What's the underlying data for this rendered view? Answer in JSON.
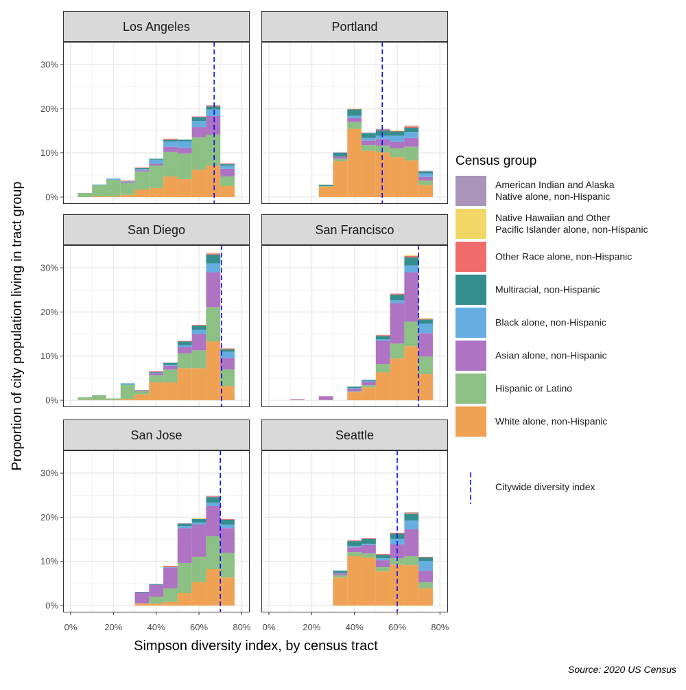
{
  "chart_data": {
    "type": "bar",
    "subtype": "stacked-histogram-facets",
    "xlabel": "Simpson diversity index, by census tract",
    "ylabel": "Proportion of city population living in tract group",
    "caption": "Source: 2020 US Census",
    "x_ticks": [
      "0%",
      "20%",
      "40%",
      "60%",
      "80%"
    ],
    "x_tick_values": [
      0,
      20,
      40,
      60,
      80
    ],
    "y_ticks": [
      "0%",
      "10%",
      "20%",
      "30%"
    ],
    "y_tick_values": [
      0,
      10,
      20,
      30
    ],
    "xlim": [
      -3.5,
      83.8
    ],
    "ylim": [
      -1.55,
      35.1
    ],
    "grid": true,
    "bin_centers": [
      6.67,
      13.33,
      20,
      26.67,
      33.33,
      40,
      46.67,
      53.33,
      60,
      66.67,
      73.33
    ],
    "bin_width": 6.67,
    "legend": {
      "title": "Census group",
      "placement": "right",
      "line_label": "Citywide diversity index",
      "line_color": "#0000FF"
    },
    "groups": [
      {
        "name": "American Indian and Alaska Native alone, non-Hispanic",
        "lines": [
          "American Indian and Alaska",
          "Native alone, non-Hispanic"
        ],
        "color": "#A895B9"
      },
      {
        "name": "Native Hawaiian and Other Pacific Islander alone, non-Hispanic",
        "lines": [
          "Native Hawaiian and Other",
          "Pacific Islander alone, non-Hispanic"
        ],
        "color": "#F2D766"
      },
      {
        "name": "Other Race alone, non-Hispanic",
        "lines": [
          "Other Race alone, non-Hispanic"
        ],
        "color": "#F06B6B"
      },
      {
        "name": "Multiracial, non-Hispanic",
        "lines": [
          "Multiracial, non-Hispanic"
        ],
        "color": "#348E8E"
      },
      {
        "name": "Black alone, non-Hispanic",
        "lines": [
          "Black alone, non-Hispanic"
        ],
        "color": "#66AEE0"
      },
      {
        "name": "Asian alone, non-Hispanic",
        "lines": [
          "Asian alone, non-Hispanic"
        ],
        "color": "#AE73C3"
      },
      {
        "name": "Hispanic or Latino",
        "lines": [
          "Hispanic or Latino"
        ],
        "color": "#8CC084"
      },
      {
        "name": "White alone, non-Hispanic",
        "lines": [
          "White alone, non-Hispanic"
        ],
        "color": "#F0A254"
      }
    ],
    "facets": [
      {
        "city": "Los Angeles",
        "citywide_index": 67.1,
        "values": [
          [
            0,
            0,
            0,
            0,
            0,
            0,
            0,
            0,
            0,
            0.1,
            0
          ],
          [
            0,
            0,
            0,
            0,
            0,
            0,
            0,
            0,
            0,
            0,
            0
          ],
          [
            0,
            0,
            0,
            0.2,
            0.15,
            0,
            0.25,
            0,
            0.15,
            0.2,
            0.15
          ],
          [
            0,
            0,
            0,
            0,
            0.2,
            0.25,
            0.35,
            0.4,
            0.85,
            0.7,
            0.3
          ],
          [
            0,
            0.1,
            0.3,
            0.2,
            0.3,
            0.9,
            1.2,
            1.5,
            1.4,
            1.45,
            0.75
          ],
          [
            0,
            0,
            0,
            0.15,
            0.25,
            0.4,
            1.15,
            1.25,
            2.35,
            4.2,
            1.75
          ],
          [
            0.93,
            2.6,
            3.75,
            2.7,
            4.1,
            5.1,
            5.6,
            5.8,
            7.3,
            7.0,
            2.15
          ],
          [
            0,
            0.15,
            0.15,
            0.5,
            1.7,
            2.05,
            4.65,
            4.05,
            6.2,
            7.15,
            2.5
          ]
        ]
      },
      {
        "city": "Portland",
        "citywide_index": 53.0,
        "values": [
          [
            0,
            0,
            0,
            0,
            0.15,
            0,
            0.15,
            0.2,
            0,
            0.15,
            0.15
          ],
          [
            0,
            0,
            0,
            0,
            0,
            0.1,
            0,
            0,
            0.15,
            0.1,
            0
          ],
          [
            0,
            0,
            0,
            0,
            0,
            0.1,
            0,
            0.15,
            0.1,
            0.25,
            0
          ],
          [
            0,
            0,
            0,
            0.3,
            0.8,
            1.45,
            1.05,
            1.2,
            0.95,
            0.95,
            0.45
          ],
          [
            0,
            0,
            0,
            0,
            0,
            0.5,
            0.6,
            0.8,
            1.4,
            1.35,
            0.8
          ],
          [
            0,
            0,
            0,
            0,
            0.5,
            0.9,
            1.0,
            1.45,
            1.45,
            2.0,
            0.8
          ],
          [
            0,
            0,
            0,
            0.15,
            0.6,
            1.55,
            1.35,
            1.55,
            2.05,
            3.1,
            1.05
          ],
          [
            0,
            0,
            0,
            2.35,
            8.1,
            15.45,
            10.45,
            10.1,
            9.0,
            8.3,
            2.7
          ]
        ]
      },
      {
        "city": "San Diego",
        "citywide_index": 70.5,
        "values": [
          [
            0,
            0,
            0,
            0,
            0,
            0,
            0,
            0,
            0,
            0.1,
            0
          ],
          [
            0,
            0,
            0,
            0,
            0,
            0,
            0,
            0,
            0,
            0.1,
            0
          ],
          [
            0,
            0,
            0,
            0,
            0,
            0.2,
            0,
            0.15,
            0.2,
            0.2,
            0.2
          ],
          [
            0,
            0,
            0,
            0,
            0,
            0.15,
            0.5,
            0.85,
            0.95,
            2.0,
            0.55
          ],
          [
            0,
            0,
            0,
            0.35,
            0,
            0.1,
            0.2,
            0.4,
            0.95,
            2.0,
            1.4
          ],
          [
            0,
            0,
            0,
            0,
            0.2,
            0.45,
            0.85,
            1.4,
            3.7,
            7.9,
            2.65
          ],
          [
            0.6,
            1.1,
            0.3,
            3.2,
            0.75,
            1.65,
            2.9,
            3.4,
            4.05,
            7.8,
            3.75
          ],
          [
            0.1,
            0.1,
            0.1,
            0.3,
            1.35,
            4.05,
            4.05,
            7.25,
            7.25,
            13.3,
            3.2
          ]
        ]
      },
      {
        "city": "San Francisco",
        "citywide_index": 70.0,
        "values": [
          [
            0,
            0,
            0,
            0,
            0,
            0,
            0,
            0,
            0,
            0,
            0
          ],
          [
            0,
            0,
            0,
            0,
            0,
            0,
            0,
            0,
            0,
            0.2,
            0.15
          ],
          [
            0,
            0,
            0,
            0,
            0,
            0,
            0,
            0.2,
            0.25,
            0.3,
            0.15
          ],
          [
            0,
            0,
            0,
            0,
            0,
            0.3,
            0.25,
            0.75,
            1.25,
            1.85,
            0.95
          ],
          [
            0,
            0,
            0,
            0,
            0,
            0.15,
            0.2,
            0.35,
            0.65,
            1.55,
            2.15
          ],
          [
            0,
            0.15,
            0,
            0.8,
            0,
            0.65,
            0.8,
            5.25,
            9.15,
            11.2,
            5.3
          ],
          [
            0,
            0,
            0,
            0,
            0,
            0.15,
            0.5,
            1.9,
            3.4,
            5.55,
            4.0
          ],
          [
            0,
            0.1,
            0,
            0.1,
            0,
            1.85,
            2.9,
            6.3,
            9.45,
            12.25,
            5.9
          ]
        ]
      },
      {
        "city": "San Jose",
        "citywide_index": 70.0,
        "values": [
          [
            0,
            0,
            0,
            0,
            0,
            0,
            0,
            0.15,
            0,
            0.15,
            0
          ],
          [
            0,
            0,
            0,
            0,
            0,
            0,
            0,
            0,
            0.15,
            0,
            0
          ],
          [
            0,
            0,
            0,
            0,
            0,
            0,
            0.3,
            0,
            0,
            0.15,
            0.15
          ],
          [
            0,
            0,
            0,
            0,
            0.15,
            0.15,
            0,
            0.5,
            0.8,
            1.25,
            1.1
          ],
          [
            0,
            0,
            0,
            0,
            0,
            0,
            0.15,
            0.45,
            0.45,
            0.75,
            0.8
          ],
          [
            0,
            0,
            0,
            0,
            2.45,
            2.7,
            4.65,
            7.9,
            7.3,
            6.85,
            5.6
          ],
          [
            0,
            0,
            0,
            0,
            0.05,
            1.55,
            3.1,
            6.85,
            5.75,
            7.45,
            5.6
          ],
          [
            0,
            0,
            0,
            0,
            0.45,
            0.45,
            0.8,
            2.8,
            5.3,
            8.25,
            6.35
          ]
        ]
      },
      {
        "city": "Seattle",
        "citywide_index": 60.0,
        "values": [
          [
            0,
            0,
            0,
            0,
            0,
            0,
            0,
            0,
            0,
            0.1,
            0
          ],
          [
            0,
            0,
            0,
            0,
            0,
            0,
            0,
            0,
            0,
            0.1,
            0
          ],
          [
            0,
            0,
            0,
            0,
            0,
            0.15,
            0.15,
            0.15,
            0.2,
            0.15,
            0.15
          ],
          [
            0,
            0,
            0,
            0,
            0.45,
            1.1,
            1.1,
            0.8,
            1.2,
            1.55,
            0.8
          ],
          [
            0,
            0,
            0,
            0,
            0.15,
            0.3,
            0.3,
            0.45,
            1.25,
            2.0,
            2.2
          ],
          [
            0,
            0,
            0,
            0,
            0.45,
            1.1,
            1.9,
            1.55,
            3.15,
            6.05,
            2.6
          ],
          [
            0,
            0,
            0,
            0,
            0.5,
            0.9,
            0.9,
            0.95,
            1.4,
            2.05,
            1.4
          ],
          [
            0,
            0,
            0,
            0,
            6.35,
            11.2,
            10.9,
            7.75,
            9.3,
            9.15,
            3.9
          ]
        ]
      }
    ]
  }
}
